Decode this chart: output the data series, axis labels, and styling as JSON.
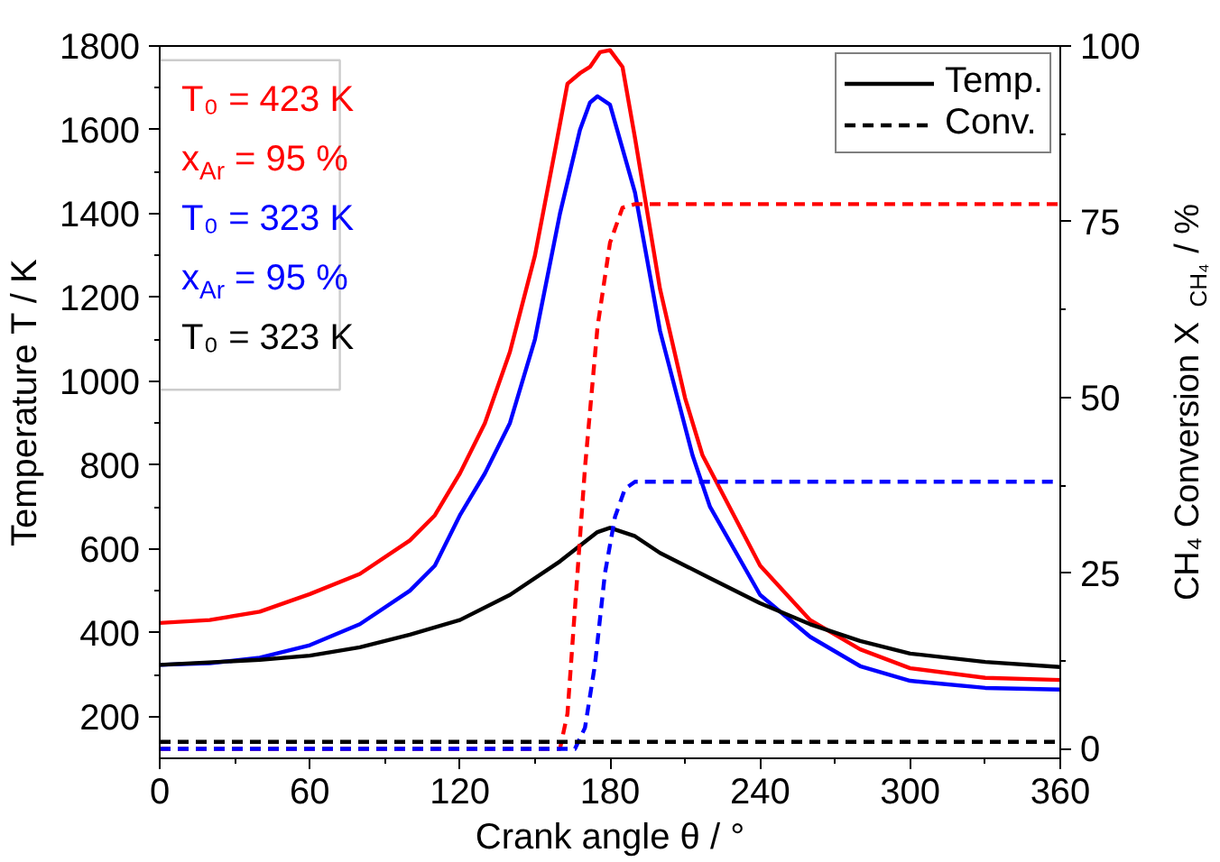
{
  "chart_data": {
    "type": "line",
    "xlabel": "Crank angle θ / °",
    "ylabel": "Temperature T / K",
    "y2label": "CH₄ Conversion X$_{CH₄}$ / %",
    "xlim": [
      0,
      360
    ],
    "xticks": [
      0,
      60,
      120,
      180,
      240,
      300,
      360
    ],
    "ylim": [
      100,
      1800
    ],
    "yticks": [
      200,
      400,
      600,
      800,
      1000,
      1200,
      1400,
      1600,
      1800
    ],
    "y2lim": [
      -1.35,
      100
    ],
    "y2ticks": [
      0,
      25,
      50,
      75,
      100
    ],
    "grid": false,
    "legend": "top right",
    "line_style": "solid",
    "annotations": [
      "T₀ = 423 K",
      "x$_{Ar}$ = 95 %",
      "T₀ = 323 K",
      "x$_{Ar}$ = 95 %",
      "T₀ = 323 K"
    ],
    "series": [
      {
        "color": "#ff0000",
        "x": [
          0,
          20,
          40,
          60,
          80,
          100,
          110,
          120,
          130,
          140,
          150,
          158,
          163,
          168,
          172,
          176,
          180,
          185,
          190,
          200,
          210,
          217,
          240,
          260,
          280,
          300,
          330,
          360
        ],
        "values": [
          423,
          430,
          450,
          492,
          540,
          620,
          680,
          780,
          900,
          1070,
          1300,
          1550,
          1710,
          1735,
          1750,
          1785,
          1790,
          1750,
          1580,
          1220,
          960,
          823,
          560,
          430,
          360,
          315,
          292,
          287
        ]
      },
      {
        "color": "#0000ff",
        "x": [
          0,
          20,
          40,
          60,
          80,
          100,
          110,
          120,
          130,
          140,
          150,
          160,
          168,
          172,
          175,
          180,
          190,
          200,
          213,
          220,
          240,
          260,
          280,
          300,
          330,
          360
        ],
        "values": [
          323,
          327,
          340,
          370,
          420,
          500,
          560,
          680,
          780,
          900,
          1100,
          1400,
          1600,
          1665,
          1680,
          1660,
          1450,
          1120,
          823,
          700,
          490,
          390,
          320,
          285,
          268,
          264
        ]
      },
      {
        "name": "Temp.",
        "color": "#000000",
        "x": [
          0,
          40,
          60,
          80,
          100,
          120,
          140,
          160,
          175,
          180,
          190,
          200,
          220,
          240,
          260,
          280,
          300,
          330,
          360
        ],
        "values": [
          323,
          335,
          345,
          365,
          395,
          430,
          490,
          570,
          640,
          650,
          630,
          590,
          530,
          470,
          420,
          380,
          350,
          330,
          318
        ]
      },
      {
        "color": "#ff0000",
        "axis": "y2",
        "line_style": "dashed",
        "x": [
          0,
          160,
          163,
          166,
          170,
          175,
          180,
          185,
          190,
          360
        ],
        "values": [
          0,
          0,
          5,
          20,
          40,
          60,
          72,
          77,
          77.5,
          77.5
        ]
      },
      {
        "color": "#0000ff",
        "axis": "y2",
        "line_style": "dashed",
        "x": [
          0,
          166,
          170,
          174,
          178,
          182,
          186,
          190,
          360
        ],
        "values": [
          0,
          0,
          3,
          12,
          25,
          33,
          37,
          38,
          38
        ]
      },
      {
        "name": "Conv.",
        "color": "#000000",
        "axis": "y2",
        "line_style": "dashed",
        "x": [
          0,
          360
        ],
        "values": [
          1,
          1
        ]
      }
    ]
  }
}
